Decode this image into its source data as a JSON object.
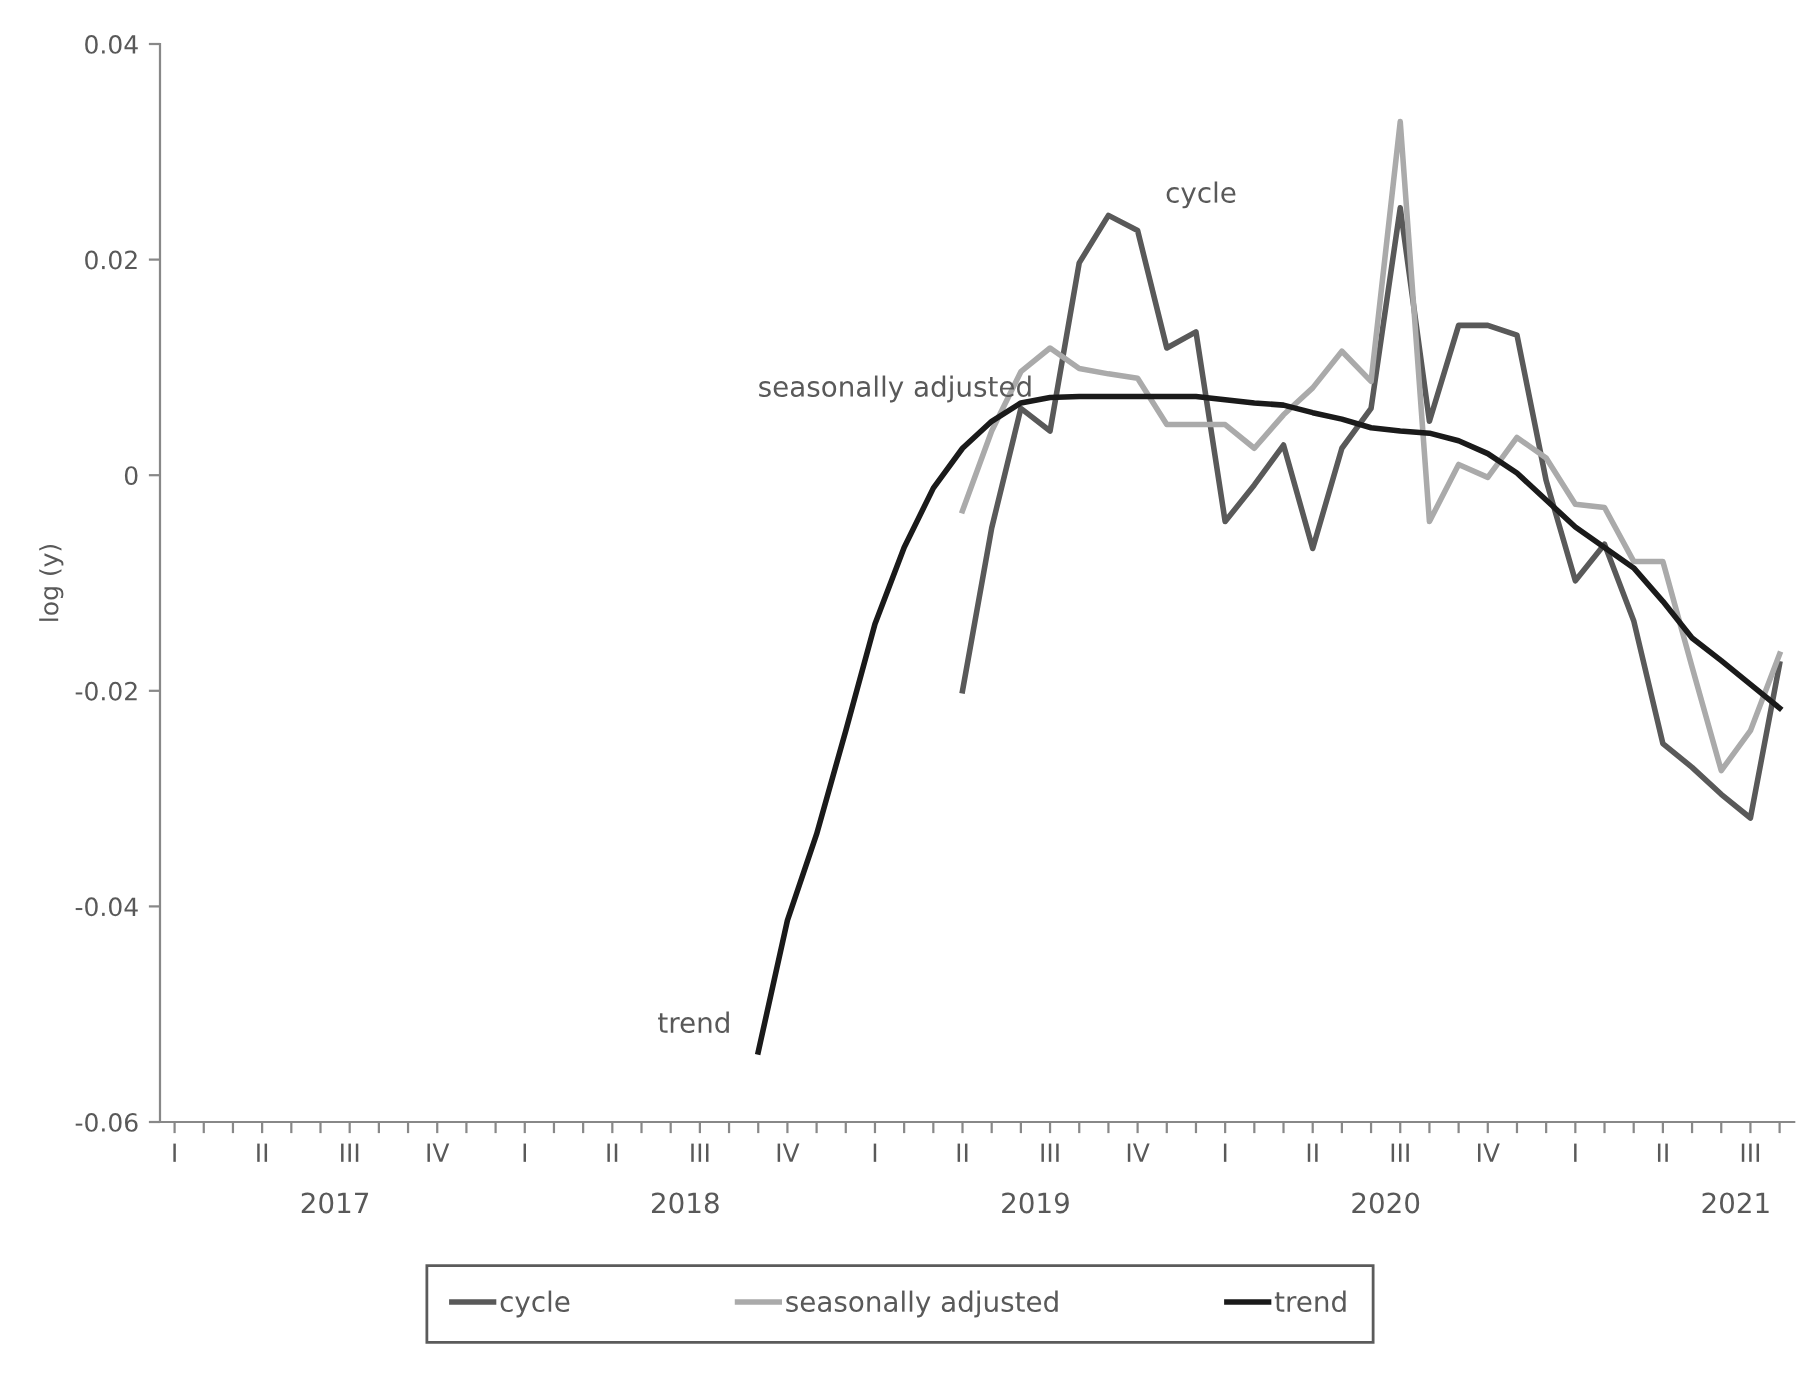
{
  "chart_data": {
    "type": "line",
    "ylabel": "log (y)",
    "categories": [
      "I",
      null,
      null,
      "II",
      null,
      null,
      "III",
      null,
      null,
      "IV",
      null,
      null,
      "I",
      null,
      null,
      "II",
      null,
      null,
      "III",
      null,
      null,
      "IV",
      null,
      null,
      "I",
      null,
      null,
      "II",
      null,
      null,
      "III",
      null,
      null,
      "IV",
      null,
      null,
      "I",
      null,
      null,
      "II",
      null,
      null,
      "III",
      null,
      null,
      "IV",
      null,
      null,
      "I",
      null,
      null,
      "II",
      null,
      null,
      "III",
      null
    ],
    "series": [
      {
        "name": "cycle",
        "color": "#595959",
        "values": [
          null,
          null,
          null,
          null,
          null,
          null,
          null,
          null,
          null,
          null,
          null,
          null,
          null,
          null,
          null,
          null,
          null,
          null,
          null,
          null,
          null,
          null,
          null,
          null,
          null,
          null,
          null,
          -0.02,
          -0.0049,
          0.0062,
          0.0041,
          0.0197,
          0.0241,
          0.0227,
          0.0118,
          0.0133,
          -0.0043,
          -0.0009,
          0.0028,
          -0.0068,
          0.0025,
          0.0062,
          0.0248,
          0.005,
          0.0139,
          0.0139,
          0.013,
          -0.0005,
          -0.0098,
          -0.0064,
          -0.0135,
          -0.0249,
          -0.0271,
          -0.0296,
          -0.0318,
          -0.0175
        ]
      },
      {
        "name": "seasonally adjusted",
        "color": "#aaaaaa",
        "values": [
          null,
          null,
          null,
          null,
          null,
          null,
          null,
          null,
          null,
          null,
          null,
          null,
          null,
          null,
          null,
          null,
          null,
          null,
          null,
          null,
          null,
          null,
          null,
          null,
          null,
          null,
          null,
          -0.0033,
          0.0041,
          0.0096,
          0.0118,
          0.0099,
          0.0094,
          0.009,
          0.0047,
          0.0047,
          0.0047,
          0.0025,
          0.0056,
          0.0081,
          0.0115,
          0.0087,
          0.0328,
          -0.0043,
          0.001,
          -0.0002,
          0.0035,
          0.0016,
          -0.0027,
          -0.003,
          -0.008,
          -0.008,
          -0.0178,
          -0.0274,
          -0.0237,
          -0.0166
        ]
      },
      {
        "name": "trend",
        "color": "#1a1a1a",
        "values": [
          null,
          null,
          null,
          null,
          null,
          null,
          null,
          null,
          null,
          null,
          null,
          null,
          null,
          null,
          null,
          null,
          null,
          null,
          null,
          null,
          -0.0535,
          -0.0413,
          -0.0333,
          -0.0237,
          -0.0138,
          -0.0067,
          -0.0012,
          0.0025,
          0.005,
          0.0067,
          0.0072,
          0.0073,
          0.0073,
          0.0073,
          0.0073,
          0.0073,
          0.007,
          0.0067,
          0.0065,
          0.0058,
          0.0052,
          0.0044,
          0.0041,
          0.0039,
          0.0032,
          0.002,
          0.0002,
          -0.0023,
          -0.0048,
          -0.0067,
          -0.0086,
          -0.0117,
          -0.0151,
          -0.0172,
          -0.0194,
          -0.0216
        ]
      }
    ],
    "annotations": [
      "cycle",
      "seasonally adjusted",
      "trend",
      "2017",
      "2018",
      "2019",
      "2020",
      "2021"
    ],
    "ylim": [
      -0.06,
      0.04
    ],
    "yticks": [
      -0.06,
      -0.04,
      -0.02,
      0,
      0.02,
      0.04
    ],
    "grid": false,
    "legend": "bottom",
    "marker": "none",
    "line_style": "solid"
  }
}
